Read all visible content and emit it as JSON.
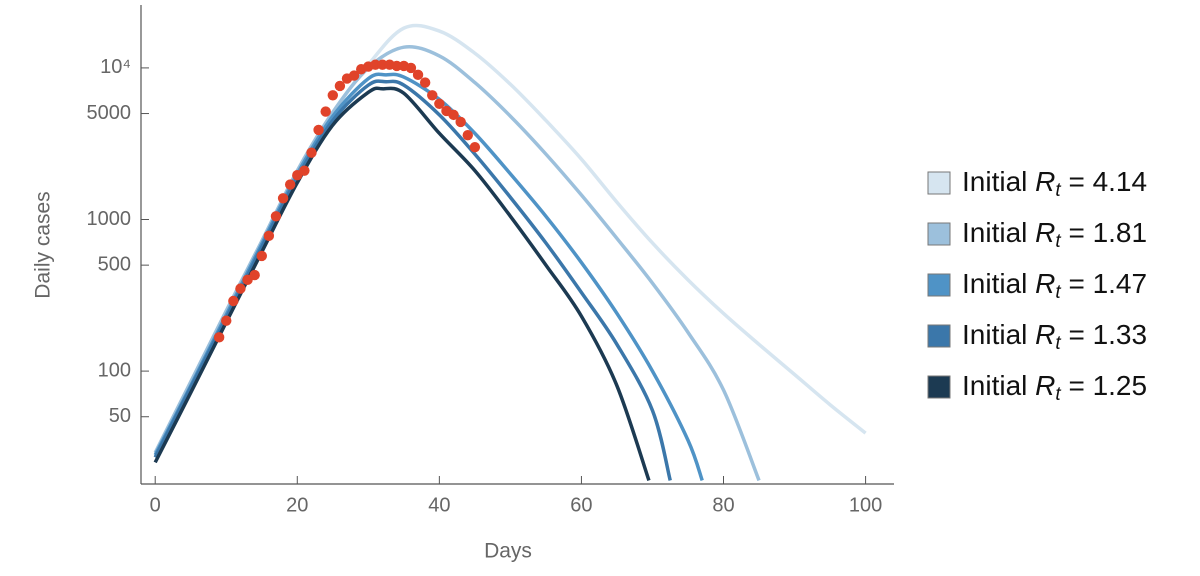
{
  "chart_data": {
    "type": "line",
    "x_label": "Days",
    "y_label": "Daily cases",
    "log_y": true,
    "xlim": [
      -2,
      104
    ],
    "ylim": [
      18,
      26000
    ],
    "xticks": [
      0,
      20,
      40,
      60,
      80,
      100
    ],
    "yticks": [
      50,
      100,
      500,
      1000,
      5000,
      {
        "value": 10000,
        "label": "10⁴"
      }
    ],
    "legend": "right",
    "series": [
      {
        "name": "Initial Rt = 4.14",
        "color": "#d6e5f0",
        "x": [
          0,
          5,
          10,
          15,
          20,
          25,
          30,
          35,
          40,
          45,
          50,
          55,
          60,
          65,
          70,
          75,
          80,
          85,
          90,
          95,
          100
        ],
        "values": [
          27,
          78,
          230,
          680,
          2000,
          5000,
          10500,
          18300,
          17500,
          12500,
          7800,
          4500,
          2500,
          1300,
          700,
          400,
          240,
          150,
          95,
          60,
          39
        ]
      },
      {
        "name": "Initial Rt = 1.81",
        "color": "#9cc0dc",
        "x": [
          0,
          5,
          10,
          15,
          20,
          25,
          30,
          35,
          40,
          45,
          50,
          55,
          60,
          65,
          70,
          75,
          80,
          85
        ],
        "values": [
          29,
          85,
          250,
          720,
          2100,
          5100,
          10000,
          13700,
          12000,
          8000,
          4800,
          2700,
          1450,
          750,
          380,
          180,
          75,
          19
        ]
      },
      {
        "name": "Initial Rt = 1.47",
        "color": "#4f93c6",
        "x": [
          0,
          5,
          10,
          15,
          20,
          25,
          30,
          32.5,
          35,
          40,
          45,
          50,
          55,
          60,
          65,
          70,
          75,
          77
        ],
        "values": [
          28,
          80,
          235,
          690,
          2000,
          4800,
          8500,
          9000,
          8700,
          6200,
          3700,
          2000,
          1050,
          520,
          240,
          100,
          35,
          19
        ]
      },
      {
        "name": "Initial Rt = 1.33",
        "color": "#3b77aa",
        "x": [
          0,
          5,
          10,
          15,
          20,
          25,
          30,
          32.5,
          35,
          40,
          45,
          50,
          55,
          60,
          65,
          70,
          72.5
        ],
        "values": [
          27,
          78,
          225,
          660,
          1900,
          4500,
          7700,
          8100,
          7700,
          4900,
          2700,
          1400,
          700,
          330,
          150,
          55,
          19
        ]
      },
      {
        "name": "Initial Rt = 1.25",
        "color": "#1c3a52",
        "x": [
          0,
          5,
          10,
          15,
          20,
          25,
          30,
          32,
          35,
          40,
          45,
          50,
          55,
          60,
          65,
          69.5
        ],
        "values": [
          25,
          72,
          210,
          610,
          1750,
          4200,
          6900,
          7280,
          6800,
          3700,
          2100,
          1050,
          500,
          230,
          80,
          19
        ]
      },
      {
        "type": "scatter",
        "color": "#e0432a",
        "x": [
          9,
          10,
          11,
          12,
          13,
          14,
          15,
          16,
          17,
          18,
          19,
          20,
          21,
          22,
          23,
          24,
          25,
          26,
          27,
          28,
          29,
          30,
          31,
          32,
          33,
          34,
          35,
          36,
          37,
          38,
          39,
          40,
          41,
          42,
          43,
          44,
          45
        ],
        "values": [
          167,
          215,
          290,
          350,
          400,
          430,
          575,
          780,
          1050,
          1380,
          1700,
          1960,
          2100,
          2760,
          3900,
          5150,
          6600,
          7600,
          8500,
          8900,
          9800,
          10200,
          10500,
          10500,
          10500,
          10300,
          10300,
          10000,
          9000,
          8000,
          6600,
          5800,
          5200,
          4900,
          4400,
          3600,
          3000
        ]
      }
    ]
  }
}
